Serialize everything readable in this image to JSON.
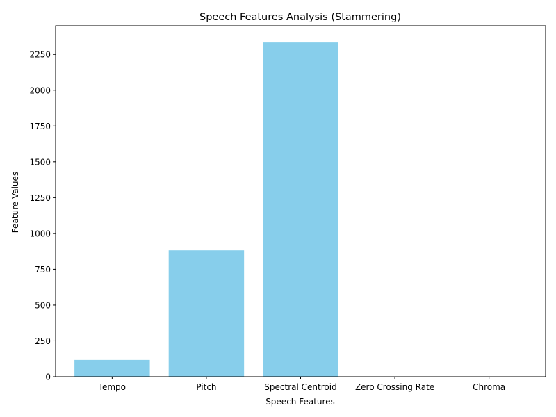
{
  "chart_data": {
    "type": "bar",
    "title": "Speech Features Analysis (Stammering)",
    "xlabel": "Speech Features",
    "ylabel": "Feature Values",
    "categories": [
      "Tempo",
      "Pitch",
      "Spectral Centroid",
      "Zero Crossing Rate",
      "Chroma"
    ],
    "values": [
      117,
      882,
      2333,
      0.1,
      0.4
    ],
    "ylim": [
      0,
      2450
    ],
    "yticks": [
      0,
      250,
      500,
      750,
      1000,
      1250,
      1500,
      1750,
      2000,
      2250
    ],
    "bar_color": "#87ceeb",
    "grid": false,
    "legend": "none"
  }
}
